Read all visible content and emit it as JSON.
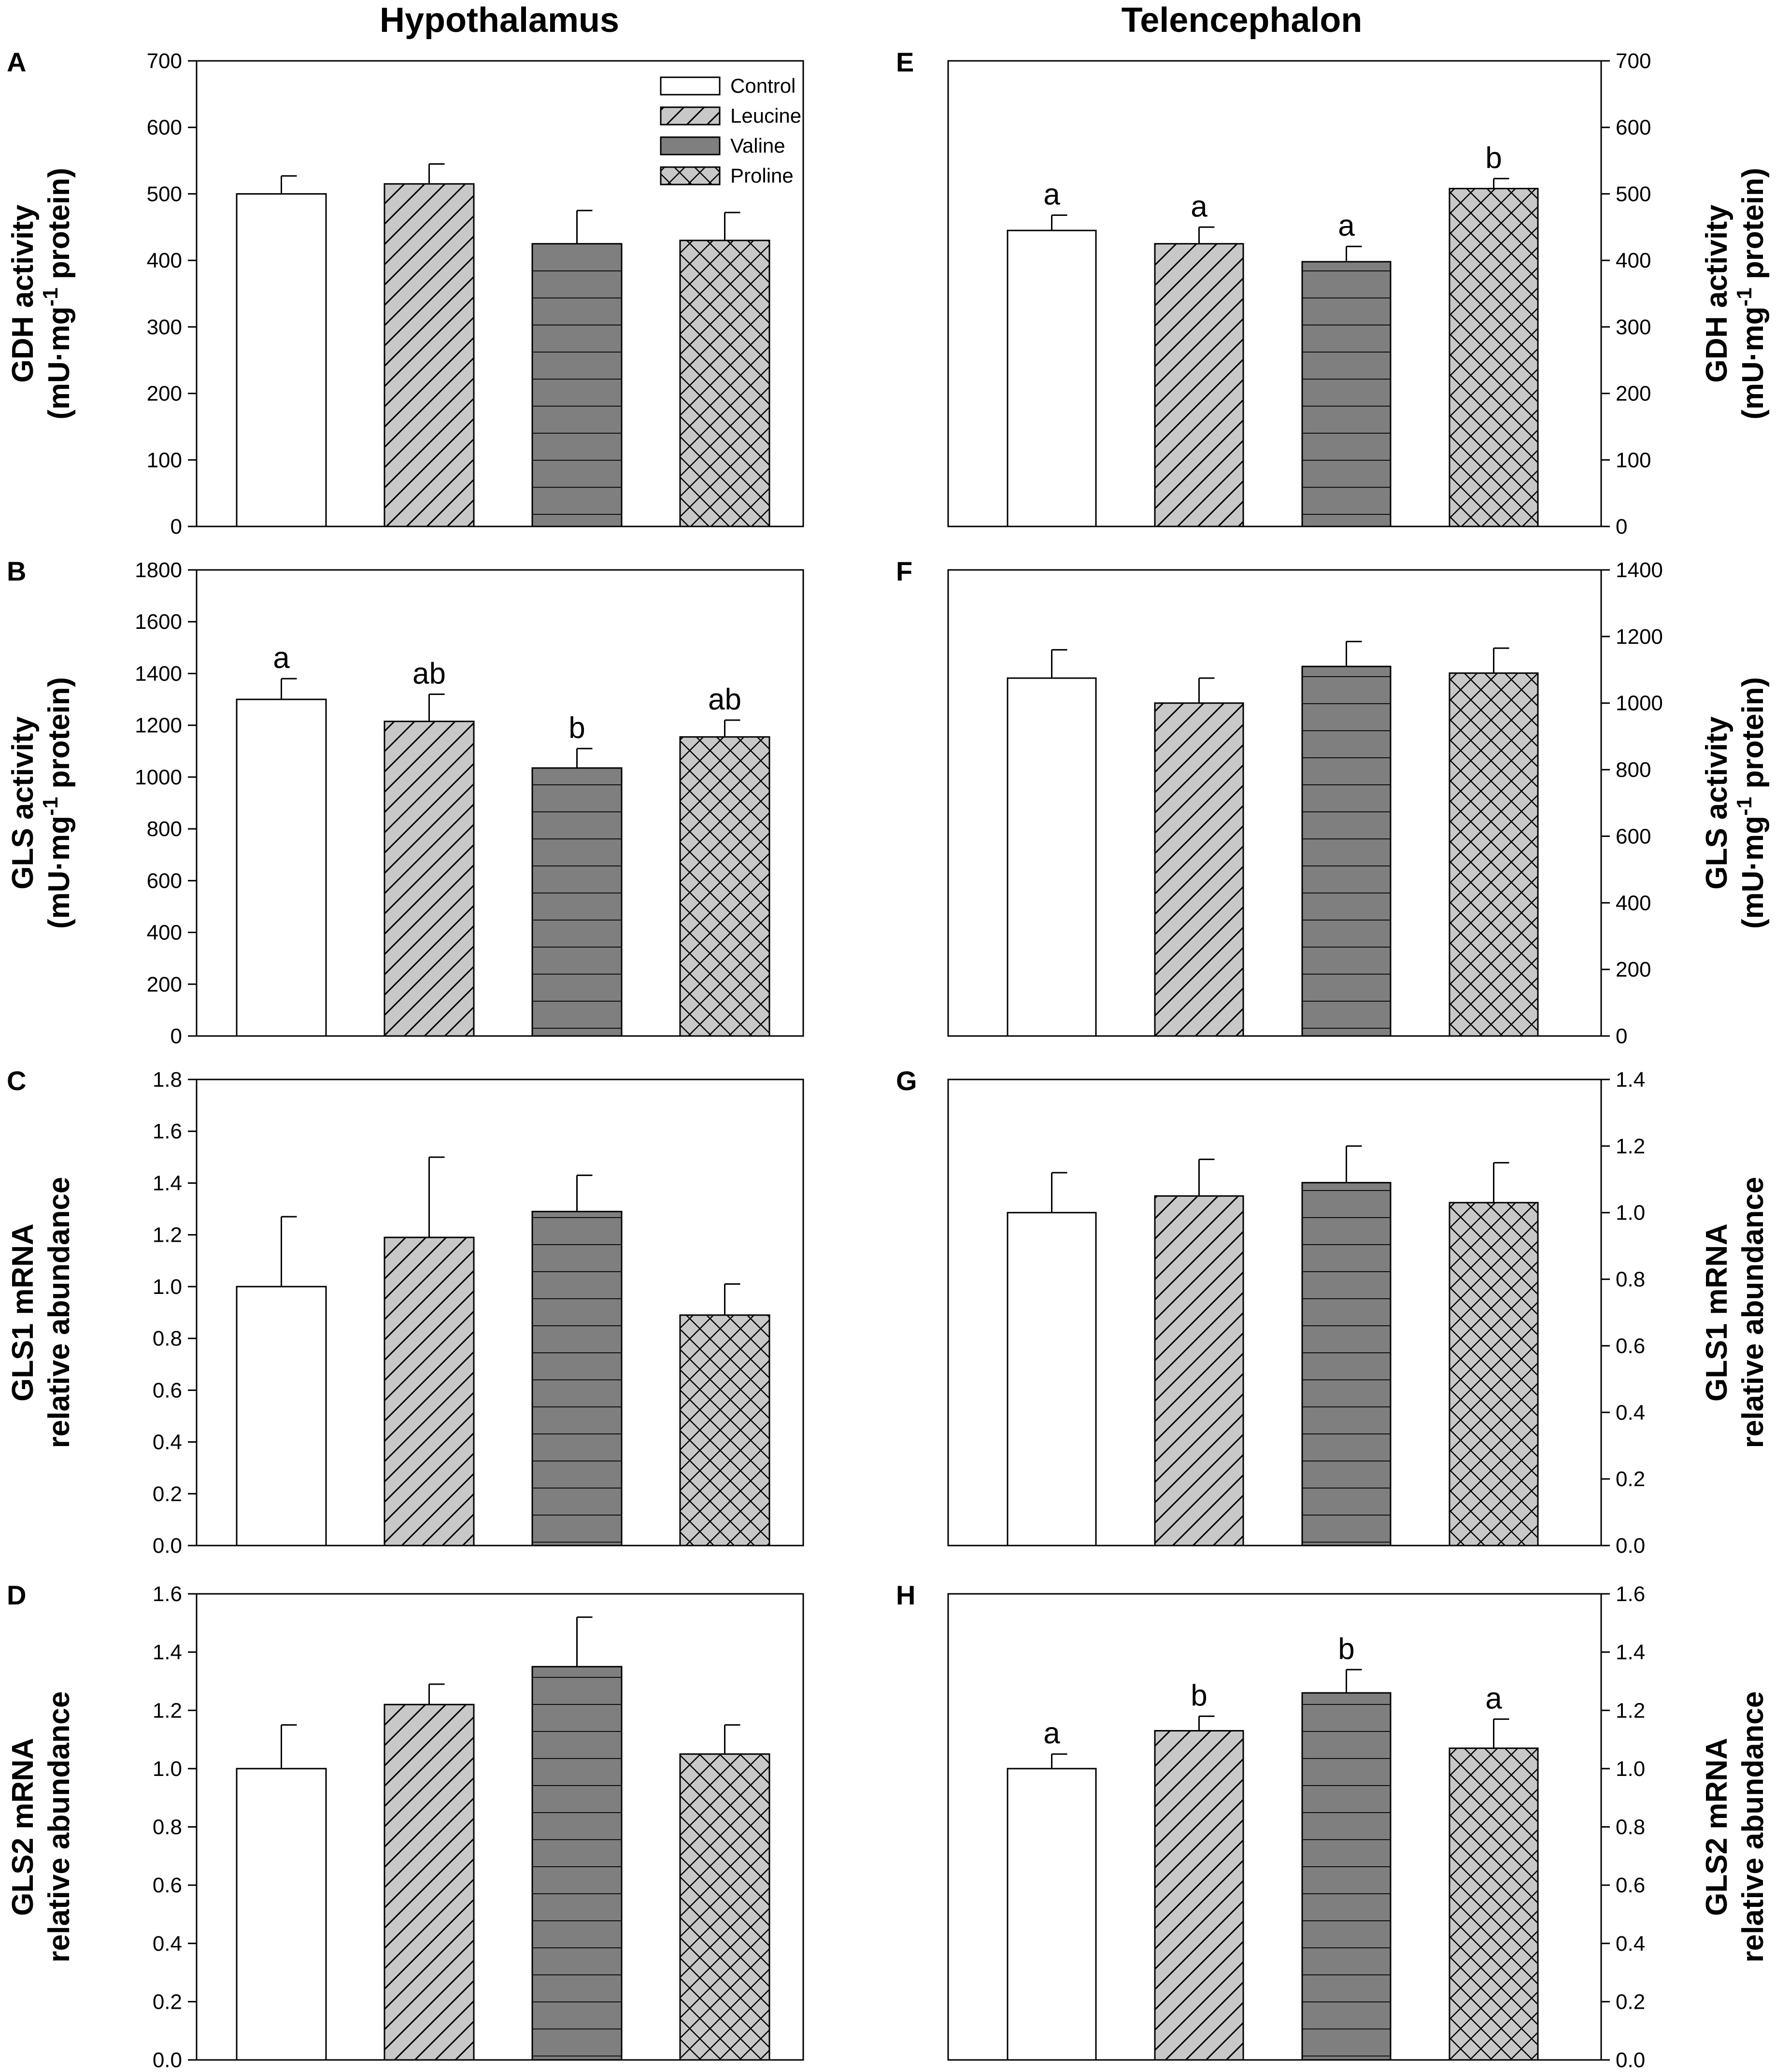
{
  "column_titles": [
    "Hypothalamus",
    "Telencephalon"
  ],
  "colors": {
    "control": "#ffffff",
    "leucine": "#c8c8c8",
    "valine": "#7f7f7f",
    "proline": "#c8c8c8",
    "stroke": "#000000"
  },
  "chart_data": [
    {
      "panel": "A",
      "type": "bar",
      "region": "Hypothalamus",
      "categories": [
        "Control",
        "Leucine",
        "Valine",
        "Proline"
      ],
      "values": [
        500,
        515,
        425,
        430
      ],
      "errors": [
        27,
        30,
        50,
        42
      ],
      "labels": [
        "",
        "",
        "",
        ""
      ],
      "ylabel": [
        "GDH activity",
        "(mU·mg",
        "-1",
        " protein)"
      ],
      "ylim": [
        0,
        700
      ],
      "yticks": [
        "0",
        "100",
        "200",
        "300",
        "400",
        "500",
        "600",
        "700"
      ],
      "axis_side": "left",
      "legend": {
        "position": "top-right",
        "entries": [
          "Control",
          "Leucine",
          "Valine",
          "Proline"
        ]
      }
    },
    {
      "panel": "B",
      "type": "bar",
      "region": "Hypothalamus",
      "categories": [
        "Control",
        "Leucine",
        "Valine",
        "Proline"
      ],
      "values": [
        1300,
        1215,
        1035,
        1155
      ],
      "errors": [
        80,
        105,
        75,
        65
      ],
      "labels": [
        "a",
        "ab",
        "b",
        "ab"
      ],
      "ylabel": [
        "GLS activity",
        "(mU·mg",
        "-1",
        " protein)"
      ],
      "ylim": [
        0,
        1800
      ],
      "yticks": [
        "0",
        "200",
        "400",
        "600",
        "800",
        "1000",
        "1200",
        "1400",
        "1600",
        "1800"
      ],
      "axis_side": "left"
    },
    {
      "panel": "C",
      "type": "bar",
      "region": "Hypothalamus",
      "categories": [
        "Control",
        "Leucine",
        "Valine",
        "Proline"
      ],
      "values": [
        1.0,
        1.19,
        1.29,
        0.89
      ],
      "errors": [
        0.27,
        0.31,
        0.14,
        0.12
      ],
      "labels": [
        "",
        "",
        "",
        ""
      ],
      "ylabel": [
        "GLS1 mRNA",
        "relative abundance"
      ],
      "ylim": [
        0,
        1.8
      ],
      "yticks": [
        "0.0",
        "0.2",
        "0.4",
        "0.6",
        "0.8",
        "1.0",
        "1.2",
        "1.4",
        "1.6",
        "1.8"
      ],
      "axis_side": "left"
    },
    {
      "panel": "D",
      "type": "bar",
      "region": "Hypothalamus",
      "categories": [
        "Control",
        "Leucine",
        "Valine",
        "Proline"
      ],
      "values": [
        1.0,
        1.22,
        1.35,
        1.05
      ],
      "errors": [
        0.15,
        0.07,
        0.17,
        0.1
      ],
      "labels": [
        "",
        "",
        "",
        ""
      ],
      "ylabel": [
        "GLS2 mRNA",
        "relative abundance"
      ],
      "ylim": [
        0,
        1.6
      ],
      "yticks": [
        "0.0",
        "0.2",
        "0.4",
        "0.6",
        "0.8",
        "1.0",
        "1.2",
        "1.4",
        "1.6"
      ],
      "axis_side": "left"
    },
    {
      "panel": "E",
      "type": "bar",
      "region": "Telencephalon",
      "categories": [
        "Control",
        "Leucine",
        "Valine",
        "Proline"
      ],
      "values": [
        445,
        425,
        398,
        508
      ],
      "errors": [
        23,
        25,
        23,
        15
      ],
      "labels": [
        "a",
        "a",
        "a",
        "b"
      ],
      "ylabel": [
        "GDH activity",
        "(mU·mg",
        "-1",
        " protein)"
      ],
      "ylim": [
        0,
        700
      ],
      "yticks": [
        "0",
        "100",
        "200",
        "300",
        "400",
        "500",
        "600",
        "700"
      ],
      "axis_side": "right"
    },
    {
      "panel": "F",
      "type": "bar",
      "region": "Telencephalon",
      "categories": [
        "Control",
        "Leucine",
        "Valine",
        "Proline"
      ],
      "values": [
        1075,
        1000,
        1110,
        1090
      ],
      "errors": [
        85,
        75,
        75,
        75
      ],
      "labels": [
        "",
        "",
        "",
        ""
      ],
      "ylabel": [
        "GLS activity",
        "(mU·mg",
        "-1",
        " protein)"
      ],
      "ylim": [
        0,
        1400
      ],
      "yticks": [
        "0",
        "200",
        "400",
        "600",
        "800",
        "1000",
        "1200",
        "1400"
      ],
      "axis_side": "right"
    },
    {
      "panel": "G",
      "type": "bar",
      "region": "Telencephalon",
      "categories": [
        "Control",
        "Leucine",
        "Valine",
        "Proline"
      ],
      "values": [
        1.0,
        1.05,
        1.09,
        1.03
      ],
      "errors": [
        0.12,
        0.11,
        0.11,
        0.12
      ],
      "labels": [
        "",
        "",
        "",
        ""
      ],
      "ylabel": [
        "GLS1 mRNA",
        "relative abundance"
      ],
      "ylim": [
        0,
        1.4
      ],
      "yticks": [
        "0.0",
        "0.2",
        "0.4",
        "0.6",
        "0.8",
        "1.0",
        "1.2",
        "1.4"
      ],
      "axis_side": "right"
    },
    {
      "panel": "H",
      "type": "bar",
      "region": "Telencephalon",
      "categories": [
        "Control",
        "Leucine",
        "Valine",
        "Proline"
      ],
      "values": [
        1.0,
        1.13,
        1.26,
        1.07
      ],
      "errors": [
        0.05,
        0.05,
        0.08,
        0.1
      ],
      "labels": [
        "a",
        "b",
        "b",
        "a"
      ],
      "ylabel": [
        "GLS2 mRNA",
        "relative abundance"
      ],
      "ylim": [
        0,
        1.6
      ],
      "yticks": [
        "0.0",
        "0.2",
        "0.4",
        "0.6",
        "0.8",
        "1.0",
        "1.2",
        "1.4",
        "1.6"
      ],
      "axis_side": "right"
    }
  ]
}
